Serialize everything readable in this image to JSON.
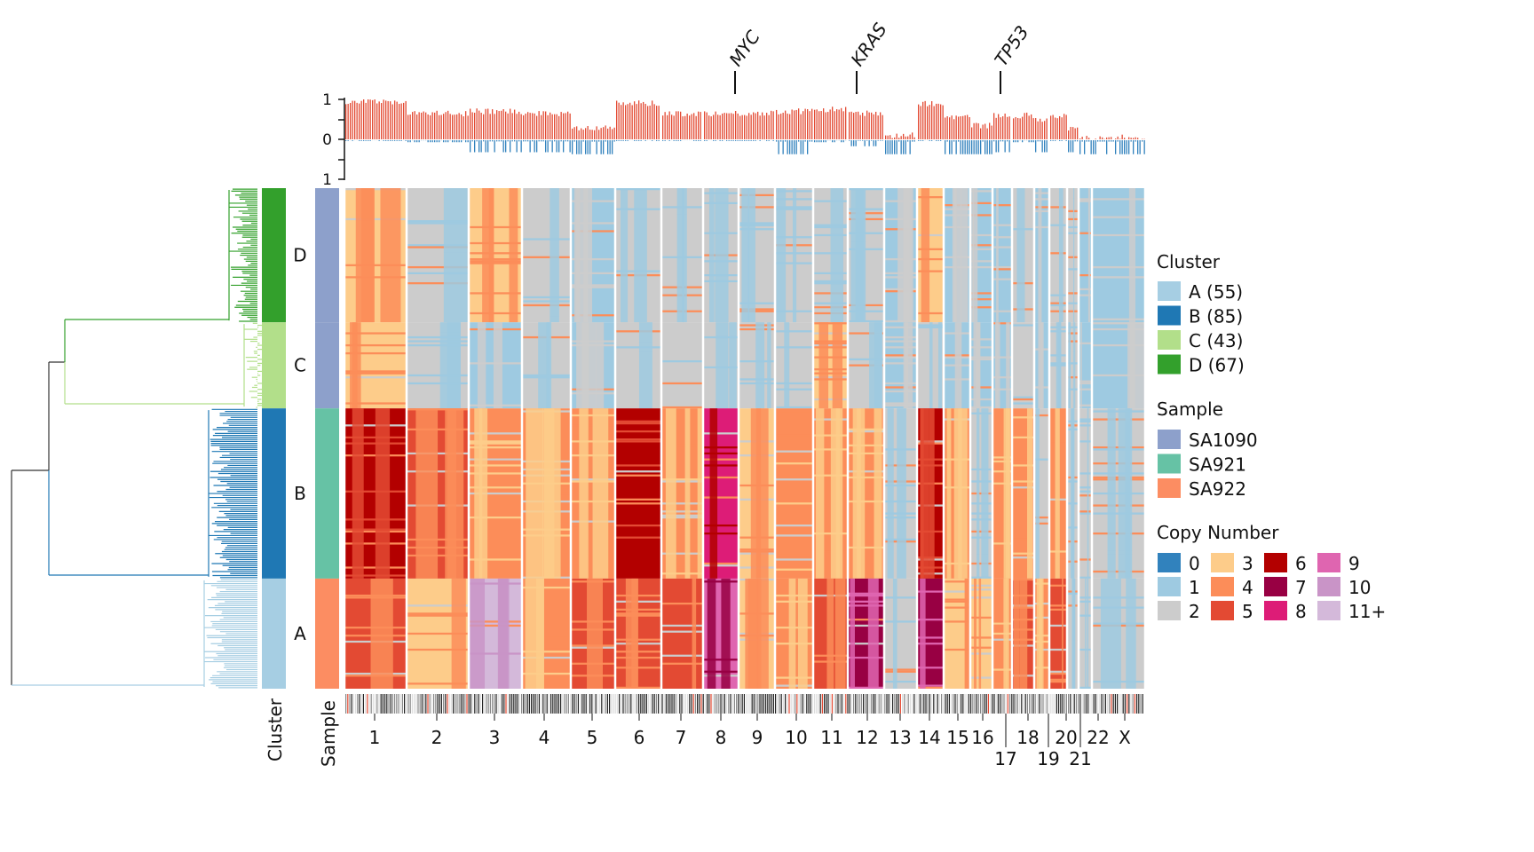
{
  "chart_data": {
    "type": "heatmap",
    "title": "",
    "genes": [
      {
        "name": "MYC",
        "chromosome": "8"
      },
      {
        "name": "KRAS",
        "chromosome": "12"
      },
      {
        "name": "TP53",
        "chromosome": "17"
      }
    ],
    "chromosomes": [
      "1",
      "2",
      "3",
      "4",
      "5",
      "6",
      "7",
      "8",
      "9",
      "10",
      "11",
      "12",
      "13",
      "14",
      "15",
      "16",
      "17",
      "18",
      "19",
      "20",
      "21",
      "22",
      "X"
    ],
    "top_track": {
      "yticks": [
        "1",
        "0",
        "1"
      ],
      "gain_fraction": [
        0.95,
        0.65,
        0.7,
        0.65,
        0.3,
        0.9,
        0.65,
        0.65,
        0.65,
        0.7,
        0.75,
        0.65,
        0.1,
        0.9,
        0.55,
        0.35,
        0.6,
        0.6,
        0.5,
        0.6,
        0.25,
        0.05,
        0.05
      ],
      "loss_fraction": [
        0.02,
        0.05,
        0.3,
        0.3,
        0.35,
        0.02,
        0.02,
        0.02,
        0.02,
        0.35,
        0.05,
        0.15,
        0.35,
        0.02,
        0.35,
        0.35,
        0.3,
        0.05,
        0.3,
        0.02,
        0.3,
        0.35,
        0.35
      ],
      "gain_color": "#e34a33",
      "loss_color": "#3182bd"
    },
    "row_order": [
      "D",
      "C",
      "B",
      "A"
    ],
    "cluster_sample": {
      "D": "SA1090",
      "C": "SA1090",
      "B": "SA921",
      "A": "SA922"
    },
    "dominant_copy_number": {
      "D": [
        "3",
        "2",
        "3",
        "2",
        "1",
        "2",
        "2",
        "2",
        "2",
        "2",
        "2",
        "2",
        "1",
        "3",
        "1",
        "1",
        "1",
        "2",
        "1",
        "2",
        "2",
        "1",
        "1"
      ],
      "C": [
        "3",
        "2",
        "1",
        "2",
        "1",
        "2",
        "2",
        "2",
        "2",
        "2",
        "3",
        "2",
        "1",
        "2",
        "1",
        "1",
        "1",
        "2",
        "1",
        "2",
        "2",
        "1",
        "1"
      ],
      "B": [
        "6",
        "5",
        "4",
        "4",
        "4",
        "6",
        "4",
        "8",
        "3",
        "4",
        "4",
        "4",
        "2",
        "6",
        "4",
        "2",
        "4",
        "4",
        "2",
        "4",
        "2",
        "2",
        "2"
      ],
      "A": [
        "5",
        "3",
        "11+",
        "4",
        "5",
        "5",
        "5",
        "9",
        "3",
        "4",
        "5",
        "7",
        "2",
        "7",
        "3",
        "3",
        "4",
        "5",
        "4",
        "5",
        "2",
        "2",
        "2"
      ]
    },
    "xlabel_cluster": "Cluster",
    "xlabel_sample": "Sample"
  },
  "legend": {
    "cluster": {
      "title": "Cluster",
      "items": [
        {
          "label": "A (55)",
          "color": "#a6cee3",
          "key": "A",
          "count": 55
        },
        {
          "label": "B (85)",
          "color": "#1f78b4",
          "key": "B",
          "count": 85
        },
        {
          "label": "C (43)",
          "color": "#b2df8a",
          "key": "C",
          "count": 43
        },
        {
          "label": "D (67)",
          "color": "#33a02c",
          "key": "D",
          "count": 67
        }
      ]
    },
    "sample": {
      "title": "Sample",
      "items": [
        {
          "label": "SA1090",
          "color": "#8da0cb"
        },
        {
          "label": "SA921",
          "color": "#66c2a5"
        },
        {
          "label": "SA922",
          "color": "#fc8d62"
        }
      ]
    },
    "copy_number": {
      "title": "Copy Number",
      "items": [
        {
          "label": "0",
          "color": "#3182bd"
        },
        {
          "label": "1",
          "color": "#9ecae1"
        },
        {
          "label": "2",
          "color": "#cccccc"
        },
        {
          "label": "3",
          "color": "#fdcc8a"
        },
        {
          "label": "4",
          "color": "#fc8d59"
        },
        {
          "label": "5",
          "color": "#e34a33"
        },
        {
          "label": "6",
          "color": "#b30000"
        },
        {
          "label": "7",
          "color": "#980043"
        },
        {
          "label": "8",
          "color": "#dd1c77"
        },
        {
          "label": "9",
          "color": "#df65b0"
        },
        {
          "label": "10",
          "color": "#c994c7"
        },
        {
          "label": "11+",
          "color": "#d4b9da"
        }
      ]
    }
  }
}
